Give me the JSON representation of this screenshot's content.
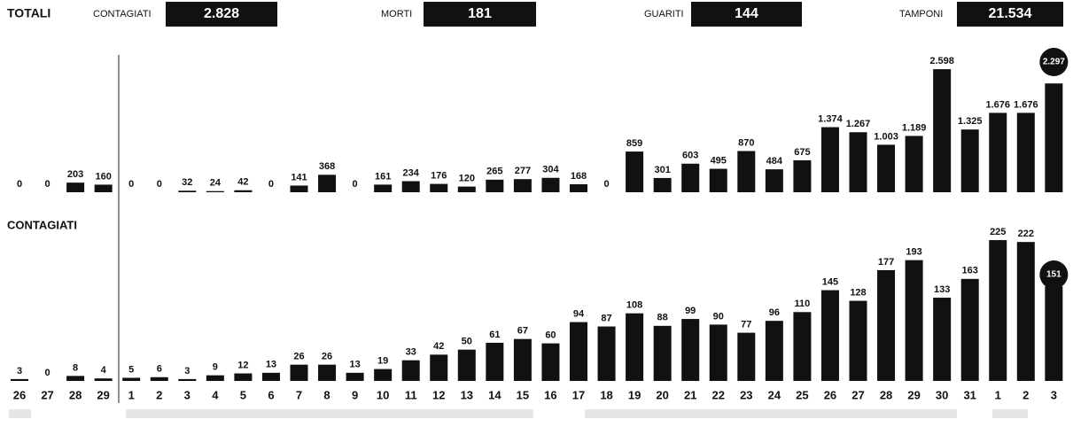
{
  "header": {
    "title": "TOTALI",
    "items": [
      {
        "label": "CONTAGIATI",
        "value": "2.828"
      },
      {
        "label": "MORTI",
        "value": "181"
      },
      {
        "label": "GUARITI",
        "value": "144"
      },
      {
        "label": "TAMPONI",
        "value": "21.534"
      }
    ]
  },
  "chart_data": [
    {
      "type": "bar",
      "color": "#111111",
      "values": [
        0,
        0,
        203,
        160,
        0,
        0,
        32,
        24,
        42,
        0,
        141,
        368,
        0,
        161,
        234,
        176,
        120,
        265,
        277,
        304,
        168,
        0,
        859,
        301,
        603,
        495,
        870,
        484,
        675,
        1374,
        1267,
        1003,
        1189,
        2598,
        1325,
        1676,
        1676,
        2297
      ],
      "value_labels": [
        "0",
        "0",
        "203",
        "160",
        "0",
        "0",
        "32",
        "24",
        "42",
        "0",
        "141",
        "368",
        "0",
        "161",
        "234",
        "176",
        "120",
        "265",
        "277",
        "304",
        "168",
        "0",
        "859",
        "301",
        "603",
        "495",
        "870",
        "484",
        "675",
        "1.374",
        "1.267",
        "1.003",
        "1.189",
        "2.598",
        "1.325",
        "1.676",
        "1.676",
        "2.297"
      ],
      "ylim": [
        0,
        2600
      ]
    },
    {
      "type": "bar",
      "title": "CONTAGIATI",
      "color": "#111111",
      "categories": [
        "26",
        "27",
        "28",
        "29",
        "1",
        "2",
        "3",
        "4",
        "5",
        "6",
        "7",
        "8",
        "9",
        "10",
        "11",
        "12",
        "13",
        "14",
        "15",
        "16",
        "17",
        "18",
        "19",
        "20",
        "21",
        "22",
        "23",
        "24",
        "25",
        "26",
        "27",
        "28",
        "29",
        "30",
        "31",
        "1",
        "2",
        "3"
      ],
      "values": [
        3,
        0,
        8,
        4,
        5,
        6,
        3,
        9,
        12,
        13,
        26,
        26,
        13,
        19,
        33,
        42,
        50,
        61,
        67,
        60,
        94,
        87,
        108,
        88,
        99,
        90,
        77,
        96,
        110,
        145,
        128,
        177,
        193,
        133,
        163,
        225,
        222,
        151
      ],
      "ylim": [
        0,
        230
      ]
    }
  ]
}
